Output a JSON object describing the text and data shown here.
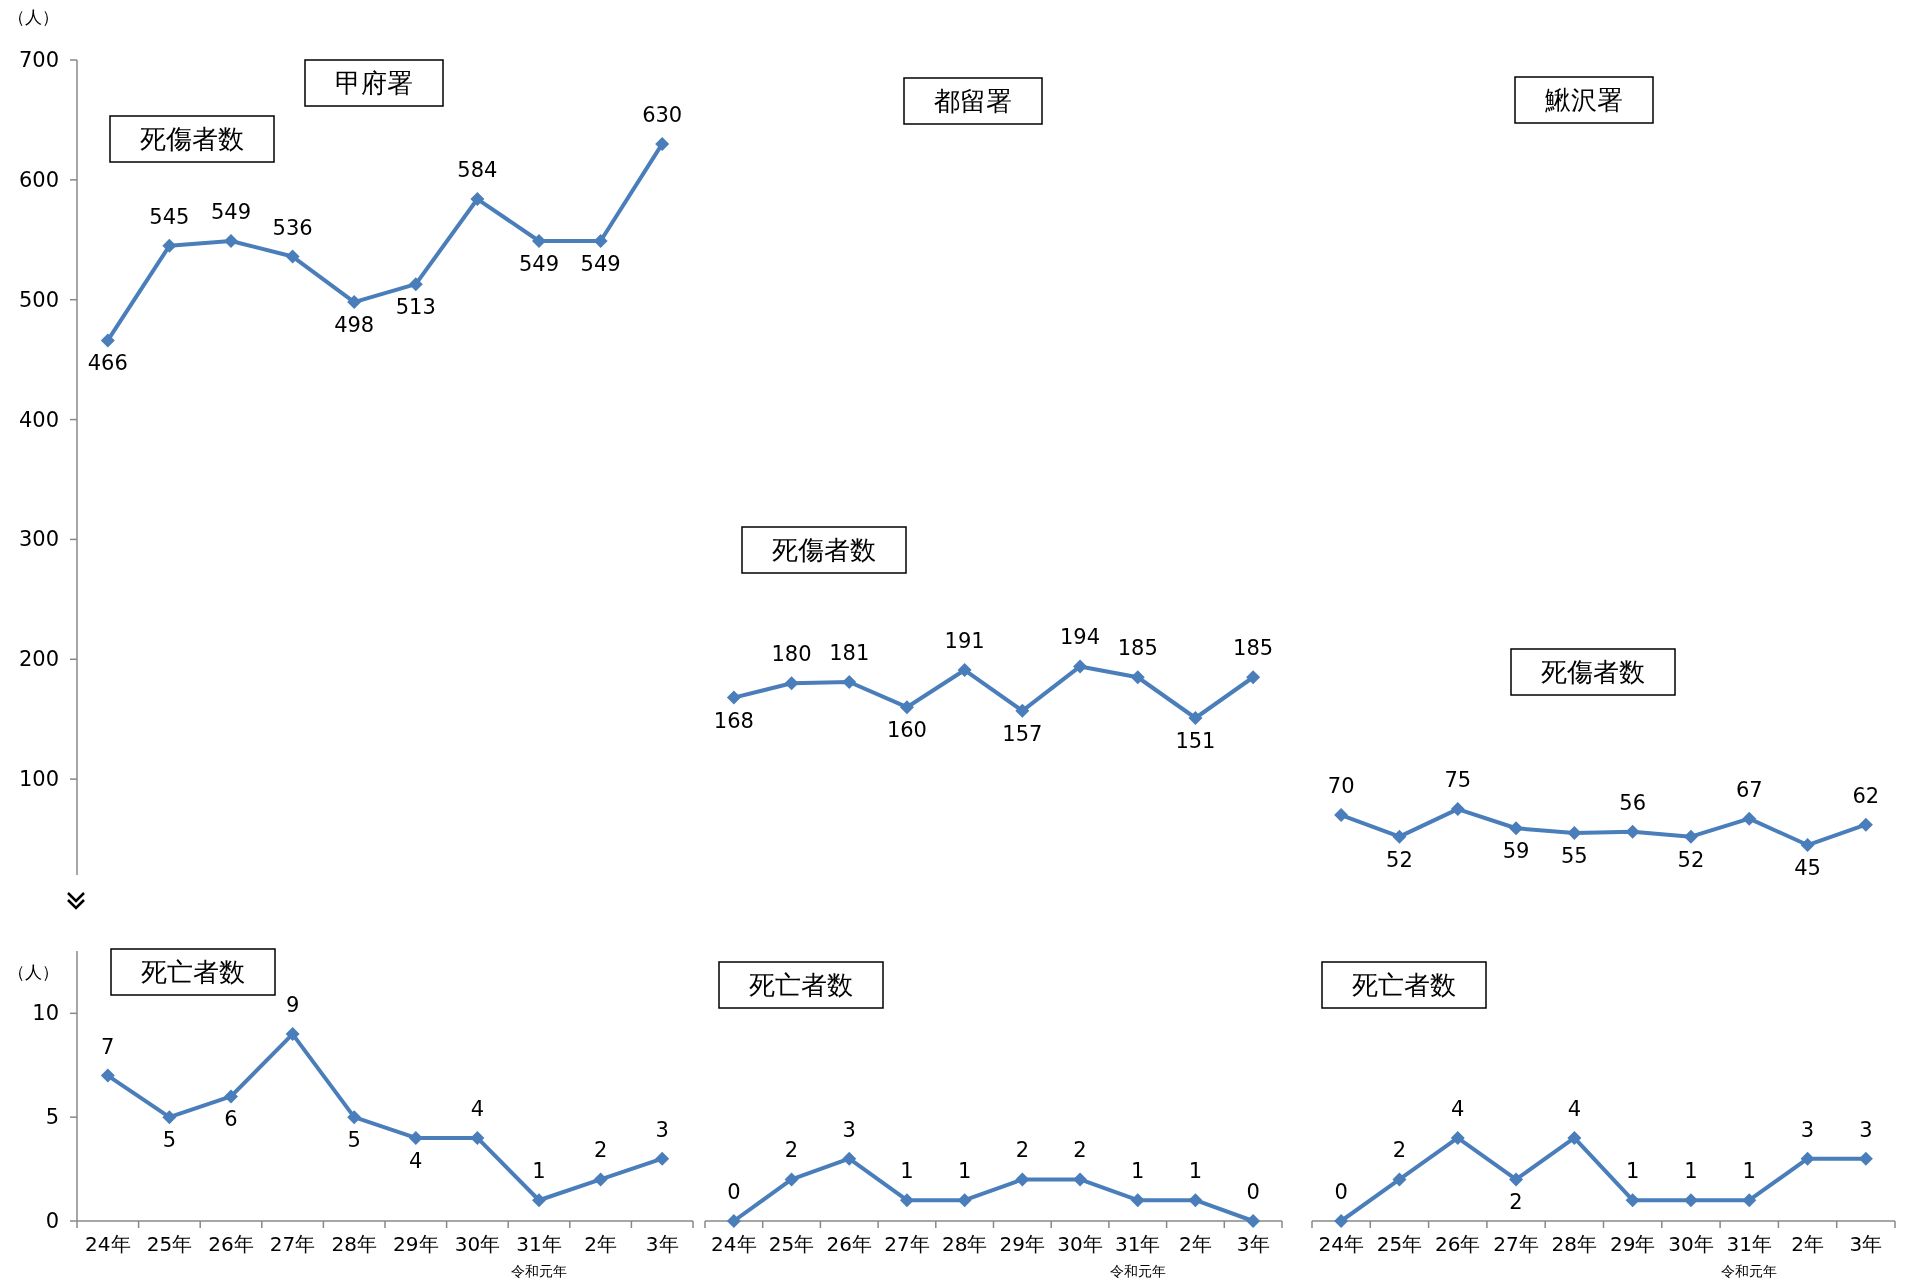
{
  "chart_data": [
    {
      "type": "line",
      "title": "甲府署",
      "subtitle": "死傷者数",
      "ylabel": "（人）",
      "categories": [
        null,
        null,
        null,
        null,
        null,
        null,
        null,
        null,
        null,
        null
      ],
      "series": [
        {
          "color": "#4a7ebb",
          "values": [
            466,
            545,
            549,
            536,
            498,
            513,
            584,
            549,
            549,
            630
          ]
        }
      ],
      "ylim": [
        20,
        700
      ],
      "yticks": [
        100,
        200,
        300,
        400,
        500,
        600,
        700
      ],
      "tick_labels": "y",
      "data_labels": true,
      "marker": "diamond"
    },
    {
      "type": "line",
      "title": "都留署",
      "subtitle": "死傷者数",
      "categories": [
        null,
        null,
        null,
        null,
        null,
        null,
        null,
        null,
        null,
        null
      ],
      "series": [
        {
          "color": "#4a7ebb",
          "values": [
            168,
            180,
            181,
            160,
            191,
            157,
            194,
            185,
            151,
            185
          ]
        }
      ],
      "tick_labels": false,
      "data_labels": true,
      "marker": "diamond"
    },
    {
      "type": "line",
      "title": "鰍沢署",
      "subtitle": "死傷者数",
      "categories": [
        null,
        null,
        null,
        null,
        null,
        null,
        null,
        null,
        null,
        null
      ],
      "series": [
        {
          "color": "#4a7ebb",
          "values": [
            70,
            52,
            75,
            59,
            55,
            56,
            52,
            67,
            45,
            62
          ]
        }
      ],
      "tick_labels": false,
      "data_labels": true,
      "marker": "diamond"
    },
    {
      "type": "line",
      "title": "死亡者数",
      "ylabel": "（人）",
      "categories": [
        "24年",
        "25年",
        "26年",
        "27年",
        "28年",
        "29年",
        "30年",
        "31年",
        "2年",
        "3年"
      ],
      "series": [
        {
          "color": "#4a7ebb",
          "values": [
            7,
            5,
            6,
            9,
            5,
            4,
            4,
            1,
            2,
            3
          ]
        }
      ],
      "ylim": [
        0,
        13
      ],
      "yticks": [
        0,
        5,
        10
      ],
      "data_labels": true,
      "marker": "diamond",
      "annotations": [
        "令和元年"
      ]
    },
    {
      "type": "line",
      "title": "死亡者数",
      "categories": [
        "24年",
        "25年",
        "26年",
        "27年",
        "28年",
        "29年",
        "30年",
        "31年",
        "2年",
        "3年"
      ],
      "series": [
        {
          "color": "#4a7ebb",
          "values": [
            0,
            2,
            3,
            1,
            1,
            2,
            2,
            1,
            1,
            0
          ]
        }
      ],
      "tick_labels": "x",
      "data_labels": true,
      "marker": "diamond",
      "annotations": [
        "令和元年"
      ]
    },
    {
      "type": "line",
      "title": "死亡者数",
      "categories": [
        "24年",
        "25年",
        "26年",
        "27年",
        "28年",
        "29年",
        "30年",
        "31年",
        "2年",
        "3年"
      ],
      "series": [
        {
          "color": "#4a7ebb",
          "values": [
            0,
            2,
            4,
            2,
            4,
            1,
            1,
            1,
            3,
            3
          ]
        }
      ],
      "tick_labels": "x",
      "data_labels": true,
      "marker": "diamond",
      "annotations": [
        "令和元年"
      ]
    }
  ]
}
